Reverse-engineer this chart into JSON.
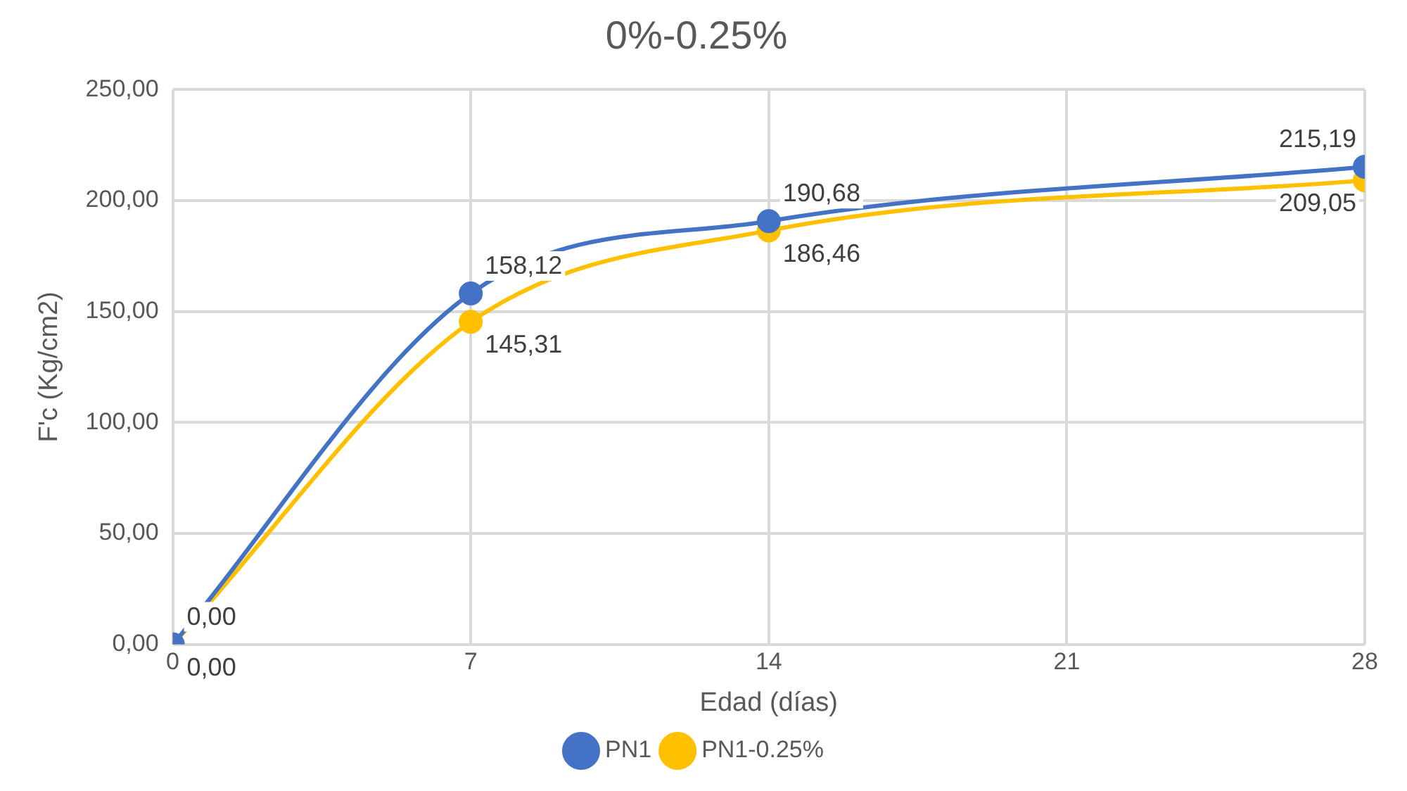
{
  "chart_data": {
    "type": "line",
    "title": "0%-0.25%",
    "xlabel": "Edad (días)",
    "ylabel": "F'c (Kg/cm2)",
    "x": [
      0,
      7,
      14,
      28
    ],
    "series": [
      {
        "name": "PN1",
        "color": "#4472c4",
        "values": [
          0,
          158.12,
          190.68,
          215.19
        ],
        "value_labels": [
          "0,00",
          "158,12",
          "190,68",
          "215,19"
        ]
      },
      {
        "name": "PN1-0.25%",
        "color": "#ffc000",
        "values": [
          0,
          145.31,
          186.46,
          209.05
        ],
        "value_labels": [
          "0,00",
          "145,31",
          "186,46",
          "209,05"
        ]
      }
    ],
    "xlim": [
      0,
      28
    ],
    "xticks": [
      0,
      7,
      14,
      21,
      28
    ],
    "ylim": [
      0,
      250
    ],
    "yticks": [
      {
        "value": 0,
        "label": "0,00"
      },
      {
        "value": 50,
        "label": "50,00"
      },
      {
        "value": 100,
        "label": "100,00"
      },
      {
        "value": 150,
        "label": "150,00"
      },
      {
        "value": 200,
        "label": "200,00"
      },
      {
        "value": 250,
        "label": "250,00"
      }
    ],
    "grid": true,
    "legend": "bottom",
    "marker": "circle",
    "line_style": "solid"
  }
}
